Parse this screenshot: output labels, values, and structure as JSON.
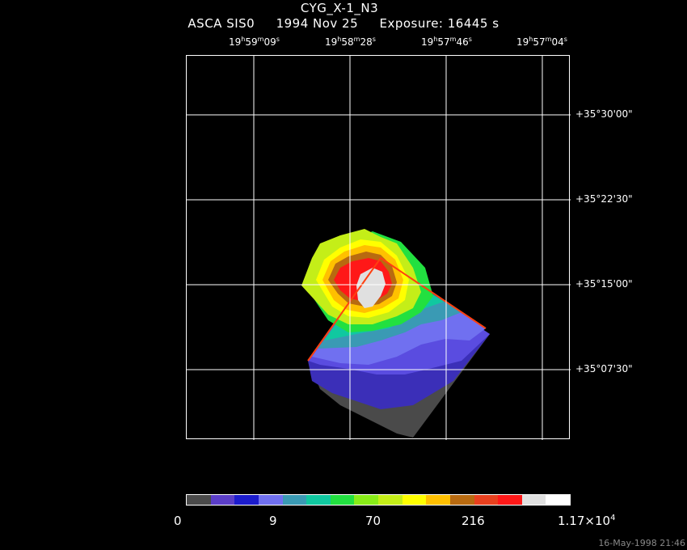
{
  "title": "CYG_X-1_N3",
  "subtitle": {
    "instrument": "ASCA SIS0",
    "date": "1994 Nov 25",
    "exposure": "Exposure: 16445 s"
  },
  "ra_labels": [
    {
      "h": "19",
      "hu": "h",
      "m": "59",
      "mu": "m",
      "s": "09",
      "su": "s"
    },
    {
      "h": "19",
      "hu": "h",
      "m": "58",
      "mu": "m",
      "s": "28",
      "su": "s"
    },
    {
      "h": "19",
      "hu": "h",
      "m": "57",
      "mu": "m",
      "s": "46",
      "su": "s"
    },
    {
      "h": "19",
      "hu": "h",
      "m": "57",
      "mu": "m",
      "s": "04",
      "su": "s"
    }
  ],
  "dec_labels": [
    "+35°30'00\"",
    "+35°22'30\"",
    "+35°15'00\"",
    "+35°07'30\""
  ],
  "colorbar": {
    "colors": [
      "#4a4a4a",
      "#5b3ec8",
      "#1c1ccc",
      "#7070f0",
      "#3a9ab4",
      "#10c8a0",
      "#22e040",
      "#88ec18",
      "#c4ee18",
      "#ffff00",
      "#ffc000",
      "#b86a10",
      "#e8401e",
      "#ff1818",
      "#e0e0e0",
      "#ffffff"
    ],
    "labels": {
      "l0": "0",
      "l1": "9",
      "l2": "70",
      "l3": "216",
      "l4_base": "1.17×10",
      "l4_exp": "4"
    }
  },
  "footer": "16-May-1998 21:46"
}
